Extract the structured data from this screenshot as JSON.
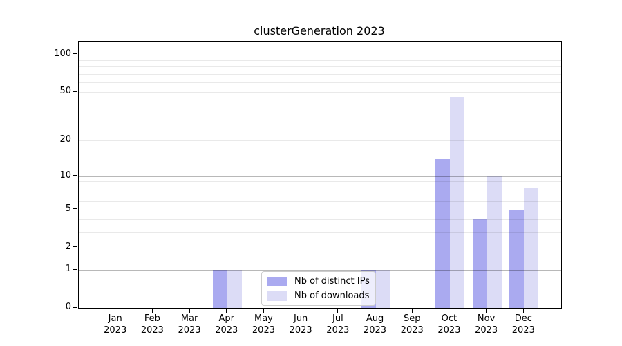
{
  "chart_data": {
    "type": "bar",
    "title": "clusterGeneration 2023",
    "categories": [
      {
        "month": "Jan",
        "year": "2023"
      },
      {
        "month": "Feb",
        "year": "2023"
      },
      {
        "month": "Mar",
        "year": "2023"
      },
      {
        "month": "Apr",
        "year": "2023"
      },
      {
        "month": "May",
        "year": "2023"
      },
      {
        "month": "Jun",
        "year": "2023"
      },
      {
        "month": "Jul",
        "year": "2023"
      },
      {
        "month": "Aug",
        "year": "2023"
      },
      {
        "month": "Sep",
        "year": "2023"
      },
      {
        "month": "Oct",
        "year": "2023"
      },
      {
        "month": "Nov",
        "year": "2023"
      },
      {
        "month": "Dec",
        "year": "2023"
      }
    ],
    "series": [
      {
        "name": "Nb of distinct IPs",
        "key": "distinct-ips",
        "color": "#aaaaf0",
        "values": [
          0,
          0,
          0,
          1,
          0,
          0,
          0,
          1,
          0,
          14,
          4,
          5
        ]
      },
      {
        "name": "Nb of downloads",
        "key": "downloads",
        "color": "#dcdcf6",
        "values": [
          0,
          0,
          0,
          1,
          0,
          0,
          0,
          1,
          0,
          46,
          10,
          8
        ]
      }
    ],
    "xlabel": "",
    "ylabel": "",
    "yscale": "log10(1+x)",
    "ylim": [
      0,
      127
    ],
    "yticks": [
      0,
      1,
      2,
      5,
      10,
      20,
      50,
      100
    ],
    "major_gridlines": [
      1,
      10,
      100
    ],
    "minor_gridlines": [
      2,
      3,
      4,
      5,
      6,
      7,
      8,
      9,
      20,
      30,
      40,
      50,
      60,
      70,
      80,
      90
    ],
    "grid": true,
    "legend_position": "lower center"
  },
  "legend": {
    "items": [
      {
        "label": "Nb of distinct IPs",
        "color": "#aaaaf0"
      },
      {
        "label": "Nb of downloads",
        "color": "#dcdcf6"
      }
    ]
  }
}
